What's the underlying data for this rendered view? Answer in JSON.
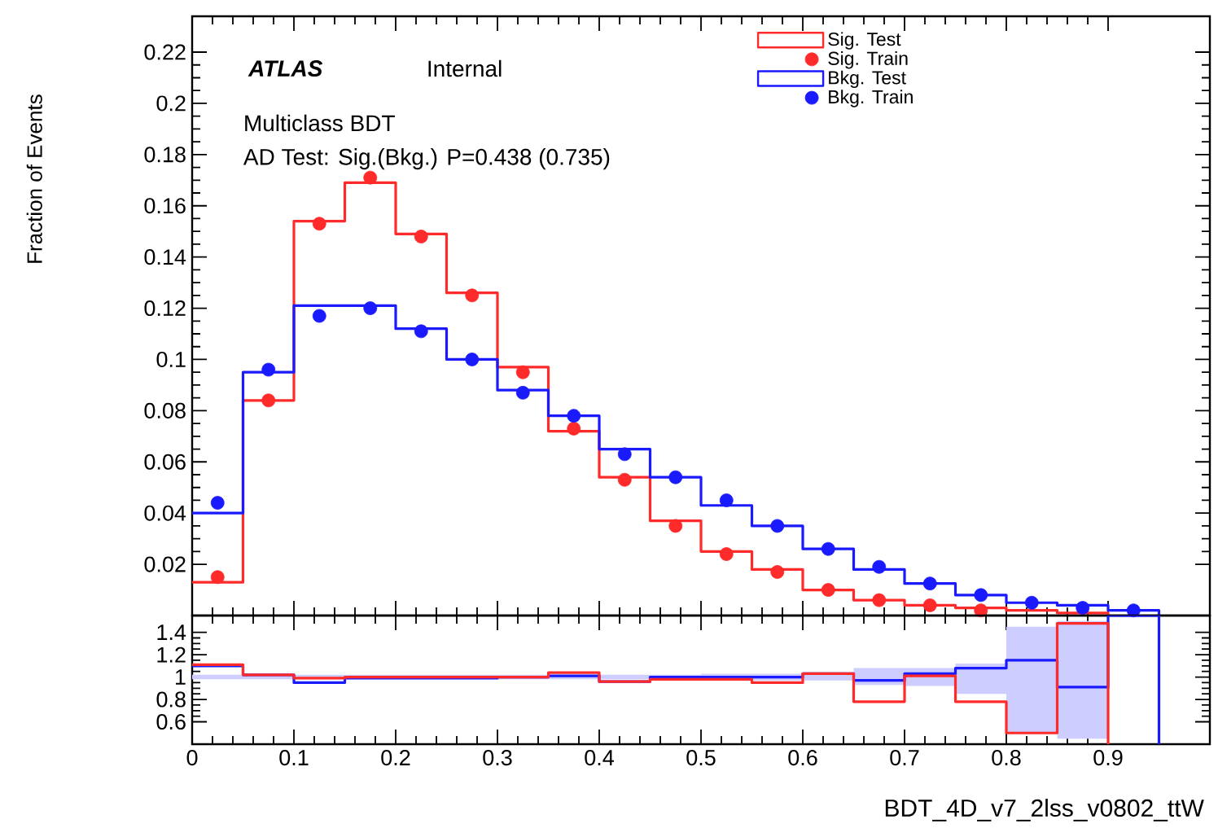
{
  "chart_data": [
    {
      "type": "step",
      "ylabel": "Fraction of Events",
      "xlim": [
        0,
        1
      ],
      "ylim": [
        0,
        0.234
      ],
      "xticks": [
        0,
        0.1,
        0.2,
        0.3,
        0.4,
        0.5,
        0.6,
        0.7,
        0.8,
        0.9
      ],
      "yticks": [
        0.02,
        0.04,
        0.06,
        0.08,
        0.1,
        0.12,
        0.14,
        0.16,
        0.18,
        0.2,
        0.22
      ],
      "tick_labels": "y",
      "legend": "top right",
      "annotations": [
        "ATLAS",
        "Internal",
        "Multiclass BDT",
        "AD Test: Sig.(Bkg.) P=0.438 (0.735)"
      ],
      "series": [
        {
          "name": "Sig. Test",
          "type": "step",
          "color": "#ff2a2a",
          "x": [
            0,
            0.05,
            0.1,
            0.15,
            0.2,
            0.25,
            0.3,
            0.35,
            0.4,
            0.45,
            0.5,
            0.55,
            0.6,
            0.65,
            0.7,
            0.75,
            0.8,
            0.85,
            0.9
          ],
          "values": [
            0.013,
            0.084,
            0.154,
            0.169,
            0.149,
            0.126,
            0.097,
            0.072,
            0.054,
            0.037,
            0.025,
            0.018,
            0.01,
            0.006,
            0.004,
            0.003,
            0.002,
            0.001,
            0
          ]
        },
        {
          "name": "Sig. Train",
          "type": "scatter",
          "marker": "circle",
          "color": "#ff2a2a",
          "x": [
            0.025,
            0.075,
            0.125,
            0.175,
            0.225,
            0.275,
            0.325,
            0.375,
            0.425,
            0.475,
            0.525,
            0.575,
            0.625,
            0.675,
            0.725,
            0.775
          ],
          "values": [
            0.015,
            0.084,
            0.153,
            0.171,
            0.148,
            0.125,
            0.095,
            0.073,
            0.053,
            0.035,
            0.024,
            0.017,
            0.01,
            0.006,
            0.004,
            0.002
          ]
        },
        {
          "name": "Bkg. Test",
          "type": "step",
          "color": "#1a1aff",
          "x": [
            0,
            0.05,
            0.1,
            0.15,
            0.2,
            0.25,
            0.3,
            0.35,
            0.4,
            0.45,
            0.5,
            0.55,
            0.6,
            0.65,
            0.7,
            0.75,
            0.8,
            0.85,
            0.9,
            0.95
          ],
          "values": [
            0.04,
            0.095,
            0.121,
            0.121,
            0.112,
            0.1,
            0.088,
            0.078,
            0.065,
            0.054,
            0.043,
            0.035,
            0.026,
            0.018,
            0.0125,
            0.008,
            0.005,
            0.004,
            0.002,
            0
          ]
        },
        {
          "name": "Bkg. Train",
          "type": "scatter",
          "marker": "circle",
          "color": "#1a1aff",
          "x": [
            0.025,
            0.075,
            0.125,
            0.175,
            0.225,
            0.275,
            0.325,
            0.375,
            0.425,
            0.475,
            0.525,
            0.575,
            0.625,
            0.675,
            0.725,
            0.775,
            0.825,
            0.875,
            0.925
          ],
          "values": [
            0.044,
            0.096,
            0.117,
            0.12,
            0.111,
            0.1,
            0.087,
            0.078,
            0.063,
            0.054,
            0.045,
            0.035,
            0.026,
            0.019,
            0.0125,
            0.008,
            0.005,
            0.003,
            0.002
          ]
        }
      ]
    },
    {
      "type": "step",
      "xlabel": "BDT_4D_v7_2lss_v0802_ttW",
      "xlim": [
        0,
        1
      ],
      "ylim": [
        0.4,
        1.55
      ],
      "xticks": [
        0,
        0.1,
        0.2,
        0.3,
        0.4,
        0.5,
        0.6,
        0.7,
        0.8,
        0.9
      ],
      "yticks": [
        0.6,
        0.8,
        1,
        1.2,
        1.4
      ],
      "series": [
        {
          "type": "step",
          "color": "#1a1aff",
          "x": [
            0,
            0.05,
            0.1,
            0.15,
            0.2,
            0.25,
            0.3,
            0.35,
            0.4,
            0.45,
            0.5,
            0.55,
            0.6,
            0.65,
            0.7,
            0.75,
            0.8,
            0.85,
            0.9,
            0.95
          ],
          "values": [
            1.1,
            1.02,
            0.95,
            0.99,
            0.99,
            0.99,
            1.0,
            1.01,
            0.96,
            1.0,
            1.0,
            1.0,
            1.03,
            0.97,
            1.03,
            1.08,
            1.15,
            0.91,
            1.55,
            0.4
          ],
          "lower": [
            0.98,
            0.98,
            0.98,
            0.98,
            0.98,
            0.98,
            0.98,
            0.98,
            0.98,
            0.98,
            0.97,
            0.97,
            0.97,
            0.93,
            0.92,
            0.85,
            0.5,
            0.45,
            0.45,
            null
          ],
          "upper": [
            1.02,
            1.02,
            1.02,
            1.02,
            1.02,
            1.02,
            1.02,
            1.02,
            1.02,
            1.02,
            1.03,
            1.03,
            1.03,
            1.08,
            1.08,
            1.12,
            1.45,
            1.5,
            1.5,
            null
          ]
        },
        {
          "type": "step",
          "color": "#ff2a2a",
          "x": [
            0,
            0.05,
            0.1,
            0.15,
            0.2,
            0.25,
            0.3,
            0.35,
            0.4,
            0.45,
            0.5,
            0.55,
            0.6,
            0.65,
            0.7,
            0.75,
            0.8,
            0.85,
            0.9
          ],
          "values": [
            1.11,
            1.02,
            0.99,
            1.0,
            1.0,
            1.0,
            1.0,
            1.04,
            0.96,
            0.98,
            0.98,
            0.95,
            1.03,
            0.78,
            1.01,
            0.78,
            0.5,
            1.48,
            0.4
          ]
        }
      ]
    }
  ]
}
